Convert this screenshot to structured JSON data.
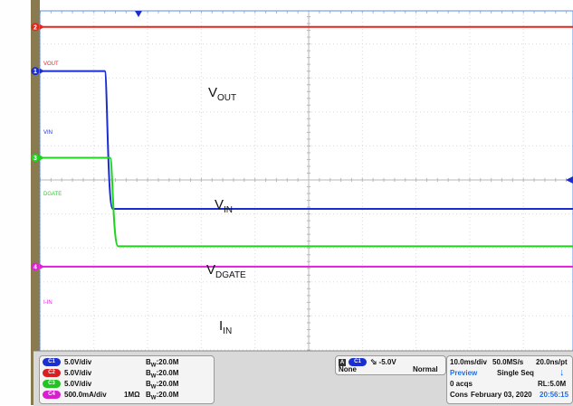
{
  "traces": [
    {
      "id": "2",
      "label": "VOUT",
      "color": "#e4261c",
      "level_div": 4.5,
      "type": "flat"
    },
    {
      "id": "1",
      "label": "VIN",
      "color": "#1b2fd0",
      "level_div": 3.2,
      "low_div": -0.85,
      "edge_div": -3.8,
      "type": "step"
    },
    {
      "id": "3",
      "label": "DGATE",
      "color": "#1fd41f",
      "level_div": 0.65,
      "low_div": -1.95,
      "edge_div": -3.7,
      "type": "step"
    },
    {
      "id": "4",
      "label": "I-IN",
      "color": "#e01fd8",
      "level_div": -2.55,
      "type": "flat"
    }
  ],
  "annotations": [
    {
      "main": "V",
      "sub": "OUT"
    },
    {
      "main": "V",
      "sub": "IN"
    },
    {
      "main": "V",
      "sub": "DGATE"
    },
    {
      "main": "I",
      "sub": "IN"
    }
  ],
  "channels": [
    {
      "badge": "C1",
      "color": "#1b2fd0",
      "scale": "5.0V/div",
      "coupling": "",
      "bw": "20.0M"
    },
    {
      "badge": "C2",
      "color": "#d82020",
      "scale": "5.0V/div",
      "coupling": "",
      "bw": "20.0M"
    },
    {
      "badge": "C3",
      "color": "#22c322",
      "scale": "5.0V/div",
      "coupling": "",
      "bw": "20.0M"
    },
    {
      "badge": "C4",
      "color": "#d81fd0",
      "scale": "500.0mA/div",
      "coupling": "1MΩ",
      "bw": "20.0M"
    }
  ],
  "bw_prefix": "B",
  "bw_sub": "W",
  "trigger": {
    "mode_badge": "A",
    "source_badge": "C1",
    "level": "-5.0V",
    "type": "None",
    "mode": "Normal"
  },
  "acq": {
    "timebase": "10.0ms/div",
    "sample_rate": "50.0MS/s",
    "resolution": "20.0ns/pt",
    "preview": "Preview",
    "seq": "Single Seq",
    "acqs": "0 acqs",
    "record_length": "RL:5.0M",
    "cons": "Cons",
    "date": "February 03, 2020",
    "time": "20:56:15"
  }
}
